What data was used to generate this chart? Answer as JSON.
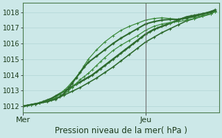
{
  "title": "Pression niveau de la mer( hPa )",
  "bg_color": "#cce8e8",
  "grid_color": "#b0d4d4",
  "line_color_dark": "#2d6a2d",
  "line_color_light": "#4a9a4a",
  "ylim": [
    1011.6,
    1018.6
  ],
  "yticks": [
    1012,
    1013,
    1014,
    1015,
    1016,
    1017,
    1018
  ],
  "xlim": [
    0,
    48
  ],
  "xtick_labels": [
    "Mer",
    "Jeu"
  ],
  "xtick_positions": [
    0,
    30
  ],
  "vline_x": 30,
  "title_fontsize": 8.5,
  "tick_fontsize": 7,
  "series": [
    {
      "x": [
        0,
        1,
        2,
        3,
        4,
        5,
        6,
        7,
        8,
        9,
        10,
        11,
        12,
        13,
        14,
        15,
        16,
        17,
        18,
        19,
        20,
        21,
        22,
        23,
        24,
        25,
        26,
        27,
        28,
        29,
        30,
        31,
        32,
        33,
        34,
        35,
        36,
        37,
        38,
        39,
        40,
        41,
        42,
        43,
        44,
        45,
        46,
        47
      ],
      "y": [
        1012.0,
        1012.05,
        1012.1,
        1012.15,
        1012.2,
        1012.3,
        1012.4,
        1012.5,
        1012.65,
        1012.8,
        1012.95,
        1013.1,
        1013.25,
        1013.4,
        1013.55,
        1013.7,
        1013.85,
        1014.0,
        1014.2,
        1014.4,
        1014.6,
        1014.8,
        1015.0,
        1015.2,
        1015.4,
        1015.6,
        1015.8,
        1016.0,
        1016.2,
        1016.4,
        1016.6,
        1016.75,
        1016.9,
        1017.0,
        1017.1,
        1017.2,
        1017.3,
        1017.4,
        1017.5,
        1017.6,
        1017.7,
        1017.75,
        1017.8,
        1017.85,
        1017.9,
        1017.95,
        1018.0,
        1018.1
      ],
      "lw": 1.8,
      "color": "#2d6a2d",
      "marker": "+",
      "ms": 2.5,
      "mew": 0.8
    },
    {
      "x": [
        0,
        2,
        4,
        6,
        8,
        10,
        12,
        14,
        16,
        18,
        20,
        22,
        24,
        26,
        28,
        30,
        32,
        34,
        36,
        38,
        40,
        42,
        44,
        46,
        47
      ],
      "y": [
        1012.0,
        1012.1,
        1012.2,
        1012.35,
        1012.5,
        1012.7,
        1012.95,
        1013.2,
        1013.5,
        1013.8,
        1014.15,
        1014.5,
        1014.9,
        1015.3,
        1015.7,
        1016.1,
        1016.4,
        1016.7,
        1016.95,
        1017.2,
        1017.45,
        1017.6,
        1017.75,
        1017.9,
        1018.05
      ],
      "lw": 1.2,
      "color": "#2d6a2d",
      "marker": "+",
      "ms": 2.5,
      "mew": 0.8
    },
    {
      "x": [
        0,
        2,
        4,
        6,
        7,
        8,
        9,
        10,
        11,
        12,
        13,
        14,
        15,
        16,
        18,
        20,
        22,
        24,
        26,
        28,
        30,
        32,
        34,
        36,
        38,
        40,
        42,
        44,
        46,
        47
      ],
      "y": [
        1012.0,
        1012.1,
        1012.2,
        1012.3,
        1012.4,
        1012.55,
        1012.75,
        1013.0,
        1013.25,
        1013.55,
        1013.85,
        1014.2,
        1014.6,
        1015.0,
        1015.6,
        1016.1,
        1016.5,
        1016.85,
        1017.1,
        1017.3,
        1017.5,
        1017.6,
        1017.65,
        1017.6,
        1017.55,
        1017.6,
        1017.7,
        1017.8,
        1017.9,
        1018.05
      ],
      "lw": 0.9,
      "color": "#3a8a3a",
      "marker": "+",
      "ms": 2.2,
      "mew": 0.7
    },
    {
      "x": [
        0,
        2,
        4,
        6,
        8,
        9,
        10,
        11,
        12,
        13,
        14,
        15,
        16,
        17,
        18,
        19,
        20,
        22,
        24,
        26,
        28,
        30,
        32,
        34,
        36,
        38,
        40,
        42,
        44,
        46,
        47
      ],
      "y": [
        1012.0,
        1012.1,
        1012.2,
        1012.35,
        1012.5,
        1012.6,
        1012.75,
        1012.95,
        1013.2,
        1013.45,
        1013.7,
        1013.9,
        1014.1,
        1014.35,
        1014.6,
        1014.85,
        1015.1,
        1015.55,
        1015.9,
        1016.2,
        1016.5,
        1016.85,
        1017.1,
        1017.25,
        1017.35,
        1017.4,
        1017.5,
        1017.6,
        1017.75,
        1017.9,
        1018.05
      ],
      "lw": 0.9,
      "color": "#3a8a3a",
      "marker": "+",
      "ms": 2.2,
      "mew": 0.7
    },
    {
      "x": [
        0,
        3,
        6,
        8,
        9,
        10,
        11,
        12,
        13,
        14,
        15,
        16,
        18,
        20,
        22,
        24,
        26,
        28,
        30,
        32,
        34,
        36,
        38,
        40,
        42,
        44,
        46,
        47
      ],
      "y": [
        1012.0,
        1012.15,
        1012.3,
        1012.45,
        1012.6,
        1012.8,
        1013.1,
        1013.45,
        1013.8,
        1014.15,
        1014.5,
        1014.8,
        1015.2,
        1015.6,
        1016.0,
        1016.35,
        1016.65,
        1016.95,
        1017.25,
        1017.4,
        1017.5,
        1017.55,
        1017.55,
        1017.65,
        1017.75,
        1017.9,
        1018.05,
        1018.15
      ],
      "lw": 1.5,
      "color": "#2d6a2d",
      "marker": "+",
      "ms": 2.8,
      "mew": 1.0
    }
  ]
}
